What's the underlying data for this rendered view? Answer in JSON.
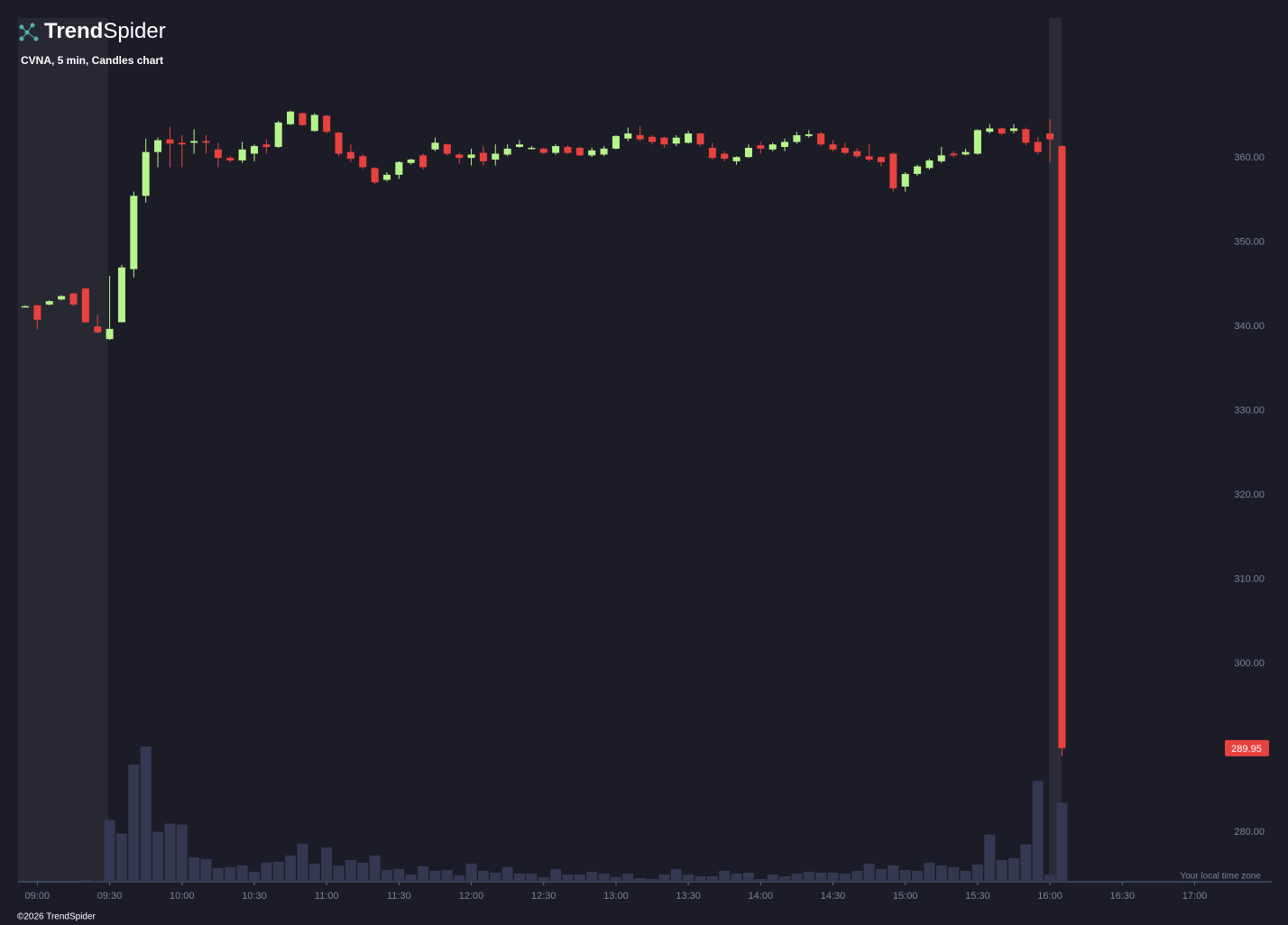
{
  "brand": {
    "strong": "Trend",
    "light": "Spider"
  },
  "footer": "©2026 TrendSpider",
  "chart_data": {
    "type": "candlestick",
    "title": "CVNA, 5 min, Candles chart",
    "timezone_note": "Your local time zone",
    "up_color": "#b6f58c",
    "down_color": "#e8423f",
    "volume_color": "#343851",
    "x": [
      "08:55",
      "09:00",
      "09:05",
      "09:10",
      "09:15",
      "09:20",
      "09:25",
      "09:30",
      "09:35",
      "09:40",
      "09:45",
      "09:50",
      "09:55",
      "10:00",
      "10:05",
      "10:10",
      "10:15",
      "10:20",
      "10:25",
      "10:30",
      "10:35",
      "10:40",
      "10:45",
      "10:50",
      "10:55",
      "11:00",
      "11:05",
      "11:10",
      "11:15",
      "11:20",
      "11:25",
      "11:30",
      "11:35",
      "11:40",
      "11:45",
      "11:50",
      "11:55",
      "12:00",
      "12:05",
      "12:10",
      "12:15",
      "12:20",
      "12:25",
      "12:30",
      "12:35",
      "12:40",
      "12:45",
      "12:50",
      "12:55",
      "13:00",
      "13:05",
      "13:10",
      "13:15",
      "13:20",
      "13:25",
      "13:30",
      "13:35",
      "13:40",
      "13:45",
      "13:50",
      "13:55",
      "14:00",
      "14:05",
      "14:10",
      "14:15",
      "14:20",
      "14:25",
      "14:30",
      "14:35",
      "14:40",
      "14:45",
      "14:50",
      "14:55",
      "15:00",
      "15:05",
      "15:10",
      "15:15",
      "15:20",
      "15:25",
      "15:30",
      "15:35",
      "15:40",
      "15:45",
      "15:50",
      "15:55",
      "16:00",
      "16:05"
    ],
    "open": [
      342.4,
      342.5,
      342.6,
      343.2,
      343.9,
      344.5,
      340.0,
      338.5,
      340.5,
      346.8,
      355.5,
      360.7,
      362.2,
      361.8,
      361.8,
      362.0,
      361.0,
      360.0,
      359.7,
      360.5,
      361.6,
      361.3,
      364.0,
      365.3,
      363.2,
      365.0,
      363.0,
      360.7,
      360.2,
      358.8,
      357.4,
      358.0,
      359.4,
      360.3,
      361.0,
      361.6,
      360.4,
      360.0,
      360.6,
      359.8,
      360.4,
      361.3,
      361.1,
      361.1,
      360.6,
      361.3,
      361.2,
      360.3,
      360.4,
      361.1,
      362.3,
      362.7,
      362.5,
      362.4,
      361.7,
      361.8,
      362.9,
      361.2,
      360.5,
      359.6,
      360.1,
      361.5,
      361.0,
      361.3,
      361.9,
      362.6,
      362.9,
      361.6,
      361.2,
      360.8,
      360.2,
      360.1,
      360.5,
      356.6,
      358.1,
      358.8,
      359.6,
      360.5,
      360.4,
      360.5,
      363.1,
      363.5,
      363.2,
      363.4,
      361.9,
      362.9,
      361.4
    ],
    "high": [
      342.5,
      342.6,
      343.1,
      343.7,
      344.0,
      344.6,
      341.4,
      346.0,
      347.3,
      356.0,
      362.3,
      362.4,
      363.7,
      362.7,
      363.4,
      362.7,
      361.8,
      360.2,
      361.9,
      361.6,
      362.2,
      364.4,
      365.6,
      365.4,
      365.3,
      365.1,
      363.1,
      361.6,
      360.4,
      358.9,
      358.3,
      359.6,
      359.9,
      360.5,
      362.4,
      361.7,
      360.6,
      361.1,
      361.4,
      361.6,
      361.6,
      362.1,
      361.4,
      361.2,
      361.6,
      361.5,
      361.3,
      361.2,
      361.4,
      362.7,
      363.6,
      363.8,
      362.7,
      362.5,
      362.7,
      363.2,
      363.0,
      361.8,
      360.8,
      360.2,
      361.6,
      361.9,
      361.8,
      362.3,
      363.1,
      363.3,
      363.1,
      362.1,
      361.8,
      361.2,
      361.6,
      360.2,
      360.7,
      358.3,
      359.2,
      359.9,
      361.3,
      360.8,
      361.1,
      363.4,
      364.0,
      363.6,
      364.0,
      363.6,
      362.5,
      364.6,
      361.5
    ],
    "low": [
      342.3,
      339.7,
      342.5,
      343.1,
      342.4,
      340.4,
      339.2,
      338.4,
      340.5,
      345.8,
      354.7,
      358.9,
      358.9,
      358.9,
      360.5,
      360.5,
      358.9,
      359.5,
      359.4,
      359.6,
      360.5,
      361.2,
      363.9,
      363.8,
      363.1,
      362.9,
      360.2,
      359.5,
      358.7,
      356.9,
      357.2,
      357.5,
      359.2,
      358.6,
      360.8,
      360.3,
      359.3,
      359.1,
      359.1,
      359.1,
      360.2,
      361.2,
      361.0,
      360.5,
      360.4,
      360.5,
      360.2,
      360.1,
      360.2,
      361.0,
      362.0,
      362.0,
      361.6,
      361.2,
      361.4,
      361.7,
      361.4,
      359.8,
      359.6,
      359.2,
      360.0,
      360.5,
      360.8,
      360.8,
      361.7,
      362.4,
      361.4,
      360.8,
      360.4,
      360.0,
      359.6,
      359.0,
      356.0,
      356.0,
      357.9,
      358.6,
      359.4,
      360.1,
      360.3,
      360.4,
      362.9,
      362.7,
      362.9,
      361.5,
      360.4,
      359.5,
      289.0
    ],
    "close": [
      342.4,
      340.8,
      343.0,
      343.6,
      342.6,
      340.5,
      339.3,
      339.7,
      347.0,
      355.5,
      360.7,
      362.1,
      361.7,
      361.6,
      362.0,
      361.8,
      360.0,
      359.7,
      361.0,
      361.4,
      361.3,
      364.2,
      365.5,
      363.9,
      365.1,
      363.1,
      360.5,
      359.9,
      358.9,
      357.1,
      358.0,
      359.5,
      359.8,
      358.9,
      361.8,
      360.5,
      360.0,
      360.4,
      359.6,
      360.5,
      361.1,
      361.6,
      361.2,
      360.6,
      361.4,
      360.6,
      360.3,
      360.9,
      361.1,
      362.6,
      362.9,
      362.2,
      361.9,
      361.6,
      362.4,
      362.9,
      361.6,
      360.0,
      359.9,
      360.1,
      361.2,
      361.1,
      361.6,
      361.9,
      362.7,
      362.8,
      361.6,
      361.0,
      360.6,
      360.2,
      359.8,
      359.5,
      356.4,
      358.1,
      359.0,
      359.7,
      360.3,
      360.3,
      360.7,
      363.3,
      363.5,
      362.9,
      363.5,
      361.8,
      360.7,
      362.2,
      289.95
    ],
    "volume": [
      0,
      0,
      0,
      0,
      0,
      2,
      1,
      68,
      53,
      129,
      149,
      55,
      64,
      63,
      27,
      25,
      15,
      16,
      18,
      11,
      21,
      22,
      29,
      42,
      20,
      38,
      18,
      24,
      21,
      29,
      13,
      14,
      8,
      17,
      12,
      13,
      7,
      20,
      12,
      10,
      16,
      9,
      9,
      5,
      14,
      8,
      8,
      11,
      9,
      5,
      9,
      4,
      3,
      8,
      14,
      8,
      6,
      6,
      12,
      9,
      10,
      3,
      8,
      6,
      9,
      11,
      10,
      10,
      9,
      12,
      20,
      14,
      18,
      13,
      12,
      21,
      18,
      16,
      12,
      19,
      52,
      24,
      26,
      41,
      111,
      8,
      87
    ],
    "xlim": [
      "08:52",
      "17:32"
    ],
    "xticks": [
      "09:00",
      "09:30",
      "10:00",
      "10:30",
      "11:00",
      "11:30",
      "12:00",
      "12:30",
      "13:00",
      "13:30",
      "14:00",
      "14:30",
      "15:00",
      "15:30",
      "16:00",
      "16:30",
      "17:00"
    ],
    "ylim": [
      274.1,
      376.6
    ],
    "yticks": [
      {
        "value": 280,
        "label": "280.00"
      },
      {
        "value": 300,
        "label": "300.00"
      },
      {
        "value": 310,
        "label": "310.00"
      },
      {
        "value": 320,
        "label": "320.00"
      },
      {
        "value": 330,
        "label": "330.00"
      },
      {
        "value": 340,
        "label": "340.00"
      },
      {
        "value": 350,
        "label": "350.00"
      },
      {
        "value": 360,
        "label": "360.00"
      }
    ]
  }
}
